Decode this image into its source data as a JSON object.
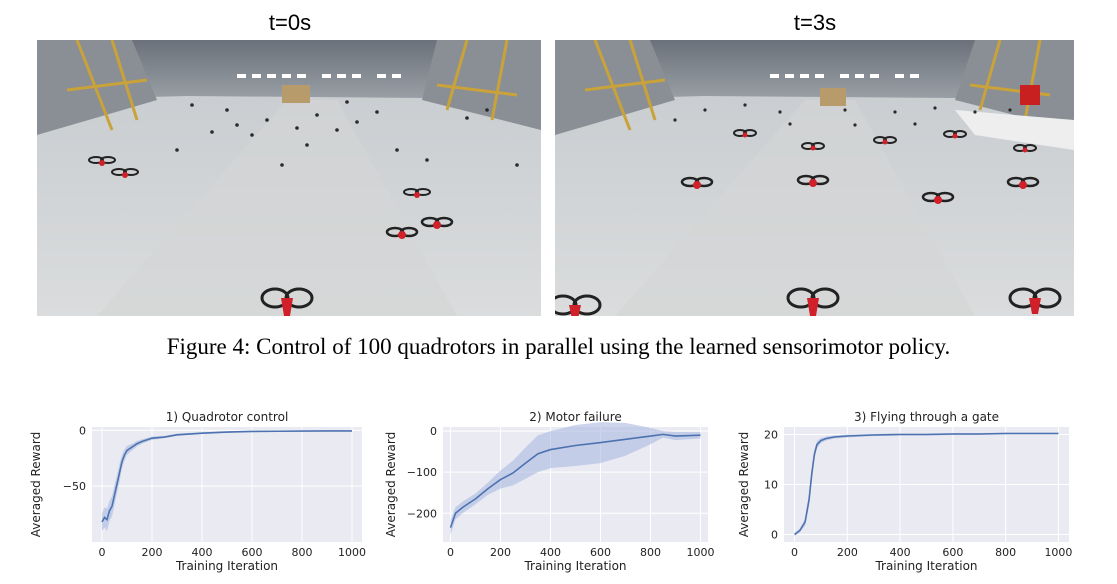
{
  "panels": [
    {
      "title": "t=0s"
    },
    {
      "title": "t=3s"
    }
  ],
  "caption": "Figure 4: Control of 100 quadrotors in parallel using the learned sensorimotor policy.",
  "colors": {
    "line": "#4c72b0",
    "band": "#aab9df",
    "plot_bg": "#eaeaf2",
    "grid": "#ffffff",
    "drone_red": "#d0202a"
  },
  "chart_data": [
    {
      "type": "line",
      "title": "1) Quadrotor control",
      "xlabel": "Training Iteration",
      "ylabel": "Averaged Reward",
      "xlim": [
        -40,
        1040
      ],
      "ylim": [
        -100,
        3
      ],
      "xticks": [
        0,
        200,
        400,
        600,
        800,
        1000
      ],
      "yticks": [
        0,
        -50
      ],
      "x": [
        0,
        10,
        20,
        30,
        40,
        50,
        60,
        70,
        80,
        90,
        100,
        120,
        140,
        160,
        200,
        250,
        300,
        400,
        500,
        600,
        700,
        800,
        900,
        1000
      ],
      "y": [
        -82,
        -78,
        -80,
        -72,
        -68,
        -58,
        -48,
        -38,
        -28,
        -22,
        -18,
        -15,
        -12,
        -10,
        -7,
        -6,
        -4,
        -2.5,
        -1.5,
        -1,
        -0.8,
        -0.6,
        -0.5,
        -0.5
      ],
      "spread": [
        8,
        9,
        10,
        9,
        9,
        9,
        8,
        8,
        6,
        5,
        4,
        3,
        2.5,
        2,
        1.5,
        1,
        1,
        0.8,
        0.6,
        0.5,
        0.4,
        0.4,
        0.3,
        0.3
      ]
    },
    {
      "type": "line",
      "title": "2) Motor failure",
      "xlabel": "Training Iteration",
      "ylabel": "Averaged Reward",
      "xlim": [
        -30,
        1030
      ],
      "ylim": [
        -270,
        10
      ],
      "xticks": [
        0,
        200,
        400,
        600,
        800,
        1000
      ],
      "yticks": [
        0,
        -100,
        -200
      ],
      "x": [
        0,
        20,
        50,
        100,
        150,
        200,
        250,
        300,
        350,
        400,
        500,
        600,
        700,
        800,
        850,
        900,
        1000
      ],
      "y": [
        -235,
        -200,
        -185,
        -165,
        -140,
        -118,
        -102,
        -78,
        -55,
        -45,
        -35,
        -28,
        -20,
        -12,
        -8,
        -12,
        -10
      ],
      "spread": [
        18,
        15,
        14,
        13,
        15,
        22,
        30,
        38,
        45,
        45,
        50,
        50,
        40,
        20,
        8,
        10,
        8
      ]
    },
    {
      "type": "line",
      "title": "3) Flying through a gate",
      "xlabel": "Training Iteration",
      "ylabel": "Averaged Reward",
      "xlim": [
        -40,
        1040
      ],
      "ylim": [
        -1.5,
        21.5
      ],
      "xticks": [
        0,
        200,
        400,
        600,
        800,
        1000
      ],
      "yticks": [
        20,
        10,
        0
      ],
      "x": [
        0,
        20,
        40,
        55,
        65,
        75,
        85,
        100,
        120,
        150,
        200,
        300,
        400,
        500,
        600,
        700,
        800,
        900,
        1000
      ],
      "y": [
        0,
        0.8,
        2.5,
        7,
        12,
        16,
        18,
        18.8,
        19.2,
        19.5,
        19.7,
        19.9,
        20,
        20,
        20.1,
        20.1,
        20.2,
        20.2,
        20.2
      ],
      "spread": [
        0.3,
        0.4,
        0.7,
        1.2,
        1.2,
        1,
        0.7,
        0.5,
        0.4,
        0.3,
        0.3,
        0.2,
        0.2,
        0.2,
        0.2,
        0.2,
        0.2,
        0.2,
        0.2
      ]
    }
  ]
}
